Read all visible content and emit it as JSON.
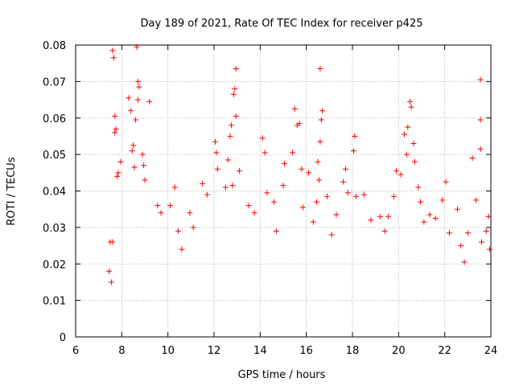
{
  "chart_data": {
    "type": "scatter",
    "title": "Day 189 of 2021, Rate Of TEC Index for receiver p425",
    "xlabel": "GPS time / hours",
    "ylabel": "ROTI / TECUs",
    "xlim": [
      6,
      24
    ],
    "ylim": [
      0,
      0.08
    ],
    "xticks": [
      6,
      8,
      10,
      12,
      14,
      16,
      18,
      20,
      22,
      24
    ],
    "yticks": [
      0,
      0.01,
      0.02,
      0.03,
      0.04,
      0.05,
      0.06,
      0.07,
      0.08
    ],
    "xtick_labels": [
      "6",
      "8",
      "10",
      "12",
      "14",
      "16",
      "18",
      "20",
      "22",
      "24"
    ],
    "ytick_labels": [
      "0",
      "0.01",
      "0.02",
      "0.03",
      "0.04",
      "0.05",
      "0.06",
      "0.07",
      "0.08"
    ],
    "grid": true,
    "marker": "+",
    "color": "#ff0000",
    "series": [
      {
        "points": [
          [
            7.6,
            0.0785
          ],
          [
            7.65,
            0.0765
          ],
          [
            7.7,
            0.056
          ],
          [
            7.75,
            0.057
          ],
          [
            7.7,
            0.0605
          ],
          [
            7.8,
            0.044
          ],
          [
            7.85,
            0.045
          ],
          [
            7.95,
            0.048
          ],
          [
            7.5,
            0.026
          ],
          [
            7.45,
            0.018
          ],
          [
            7.55,
            0.015
          ],
          [
            7.6,
            0.026
          ],
          [
            8.3,
            0.0655
          ],
          [
            8.4,
            0.062
          ],
          [
            8.45,
            0.051
          ],
          [
            8.5,
            0.0525
          ],
          [
            8.55,
            0.0465
          ],
          [
            8.6,
            0.0595
          ],
          [
            8.65,
            0.0795
          ],
          [
            8.7,
            0.07
          ],
          [
            8.75,
            0.0685
          ],
          [
            8.7,
            0.065
          ],
          [
            8.9,
            0.05
          ],
          [
            8.95,
            0.047
          ],
          [
            9.0,
            0.043
          ],
          [
            9.2,
            0.0645
          ],
          [
            9.55,
            0.036
          ],
          [
            9.7,
            0.034
          ],
          [
            10.1,
            0.036
          ],
          [
            10.3,
            0.041
          ],
          [
            10.45,
            0.029
          ],
          [
            10.6,
            0.024
          ],
          [
            10.95,
            0.034
          ],
          [
            11.1,
            0.03
          ],
          [
            11.5,
            0.042
          ],
          [
            11.7,
            0.039
          ],
          [
            12.05,
            0.0535
          ],
          [
            12.1,
            0.0505
          ],
          [
            12.15,
            0.046
          ],
          [
            12.5,
            0.041
          ],
          [
            12.6,
            0.0485
          ],
          [
            12.7,
            0.055
          ],
          [
            12.75,
            0.058
          ],
          [
            12.85,
            0.0665
          ],
          [
            12.9,
            0.068
          ],
          [
            12.95,
            0.0735
          ],
          [
            12.8,
            0.0415
          ],
          [
            12.95,
            0.0605
          ],
          [
            13.1,
            0.0455
          ],
          [
            13.5,
            0.036
          ],
          [
            13.75,
            0.034
          ],
          [
            14.1,
            0.0545
          ],
          [
            14.2,
            0.0505
          ],
          [
            14.3,
            0.0395
          ],
          [
            14.6,
            0.037
          ],
          [
            14.7,
            0.029
          ],
          [
            15.0,
            0.0415
          ],
          [
            15.05,
            0.0475
          ],
          [
            15.4,
            0.0505
          ],
          [
            15.5,
            0.0625
          ],
          [
            15.6,
            0.058
          ],
          [
            15.7,
            0.0585
          ],
          [
            15.8,
            0.046
          ],
          [
            15.85,
            0.0355
          ],
          [
            16.1,
            0.045
          ],
          [
            16.3,
            0.0315
          ],
          [
            16.45,
            0.037
          ],
          [
            16.5,
            0.048
          ],
          [
            16.6,
            0.0535
          ],
          [
            16.65,
            0.0595
          ],
          [
            16.6,
            0.0735
          ],
          [
            16.7,
            0.062
          ],
          [
            16.55,
            0.043
          ],
          [
            16.9,
            0.0385
          ],
          [
            17.1,
            0.028
          ],
          [
            17.3,
            0.0335
          ],
          [
            17.6,
            0.0425
          ],
          [
            17.7,
            0.046
          ],
          [
            17.8,
            0.0395
          ],
          [
            18.05,
            0.051
          ],
          [
            18.1,
            0.055
          ],
          [
            18.15,
            0.0385
          ],
          [
            18.5,
            0.039
          ],
          [
            18.8,
            0.032
          ],
          [
            19.2,
            0.033
          ],
          [
            19.4,
            0.029
          ],
          [
            19.55,
            0.033
          ],
          [
            19.8,
            0.0385
          ],
          [
            19.9,
            0.0455
          ],
          [
            20.1,
            0.0445
          ],
          [
            20.25,
            0.0555
          ],
          [
            20.35,
            0.05
          ],
          [
            20.4,
            0.0575
          ],
          [
            20.5,
            0.0645
          ],
          [
            20.55,
            0.063
          ],
          [
            20.65,
            0.053
          ],
          [
            20.7,
            0.048
          ],
          [
            20.85,
            0.041
          ],
          [
            20.95,
            0.037
          ],
          [
            21.1,
            0.0315
          ],
          [
            21.35,
            0.0335
          ],
          [
            21.6,
            0.0325
          ],
          [
            21.9,
            0.0375
          ],
          [
            22.05,
            0.0425
          ],
          [
            22.2,
            0.0285
          ],
          [
            22.55,
            0.035
          ],
          [
            22.7,
            0.025
          ],
          [
            22.85,
            0.0205
          ],
          [
            23.0,
            0.0285
          ],
          [
            23.2,
            0.049
          ],
          [
            23.35,
            0.0375
          ],
          [
            23.55,
            0.0515
          ],
          [
            23.55,
            0.0595
          ],
          [
            23.55,
            0.0705
          ],
          [
            23.6,
            0.026
          ],
          [
            23.8,
            0.029
          ],
          [
            23.9,
            0.033
          ],
          [
            23.95,
            0.024
          ]
        ]
      }
    ]
  }
}
